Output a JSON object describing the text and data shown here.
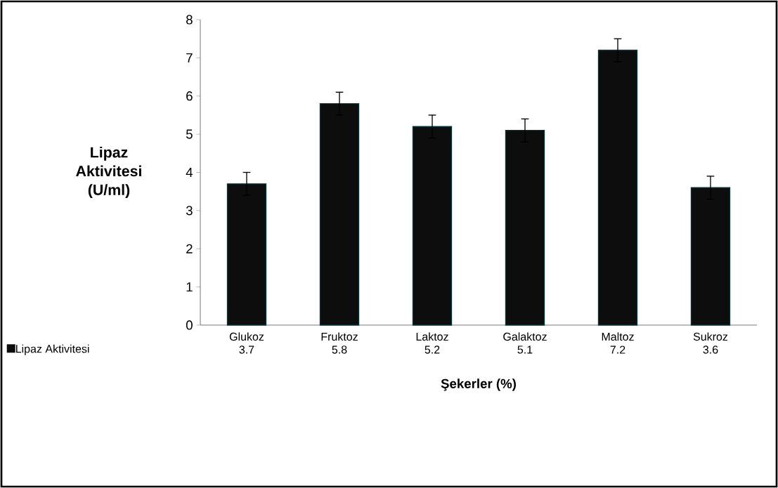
{
  "chart_data": {
    "type": "bar",
    "xlabel": "Şekerler (%)",
    "ylabel": "Lipaz Aktivitesi (U/ml)",
    "categories": [
      "Glukoz",
      "Fruktoz",
      "Laktoz",
      "Galaktoz",
      "Maltoz",
      "Sukroz"
    ],
    "series": [
      {
        "name": "Lipaz Aktivitesi",
        "color": "#0d0d0d",
        "values": [
          3.7,
          5.8,
          5.2,
          5.1,
          7.2,
          3.6
        ],
        "errors": [
          0.3,
          0.3,
          0.3,
          0.3,
          0.3,
          0.3
        ]
      }
    ],
    "ylim": [
      0,
      8
    ],
    "yticks": [
      0,
      1,
      2,
      3,
      4,
      5,
      6,
      7,
      8
    ],
    "data_labels": true,
    "legend": "bottom",
    "grid": false
  }
}
